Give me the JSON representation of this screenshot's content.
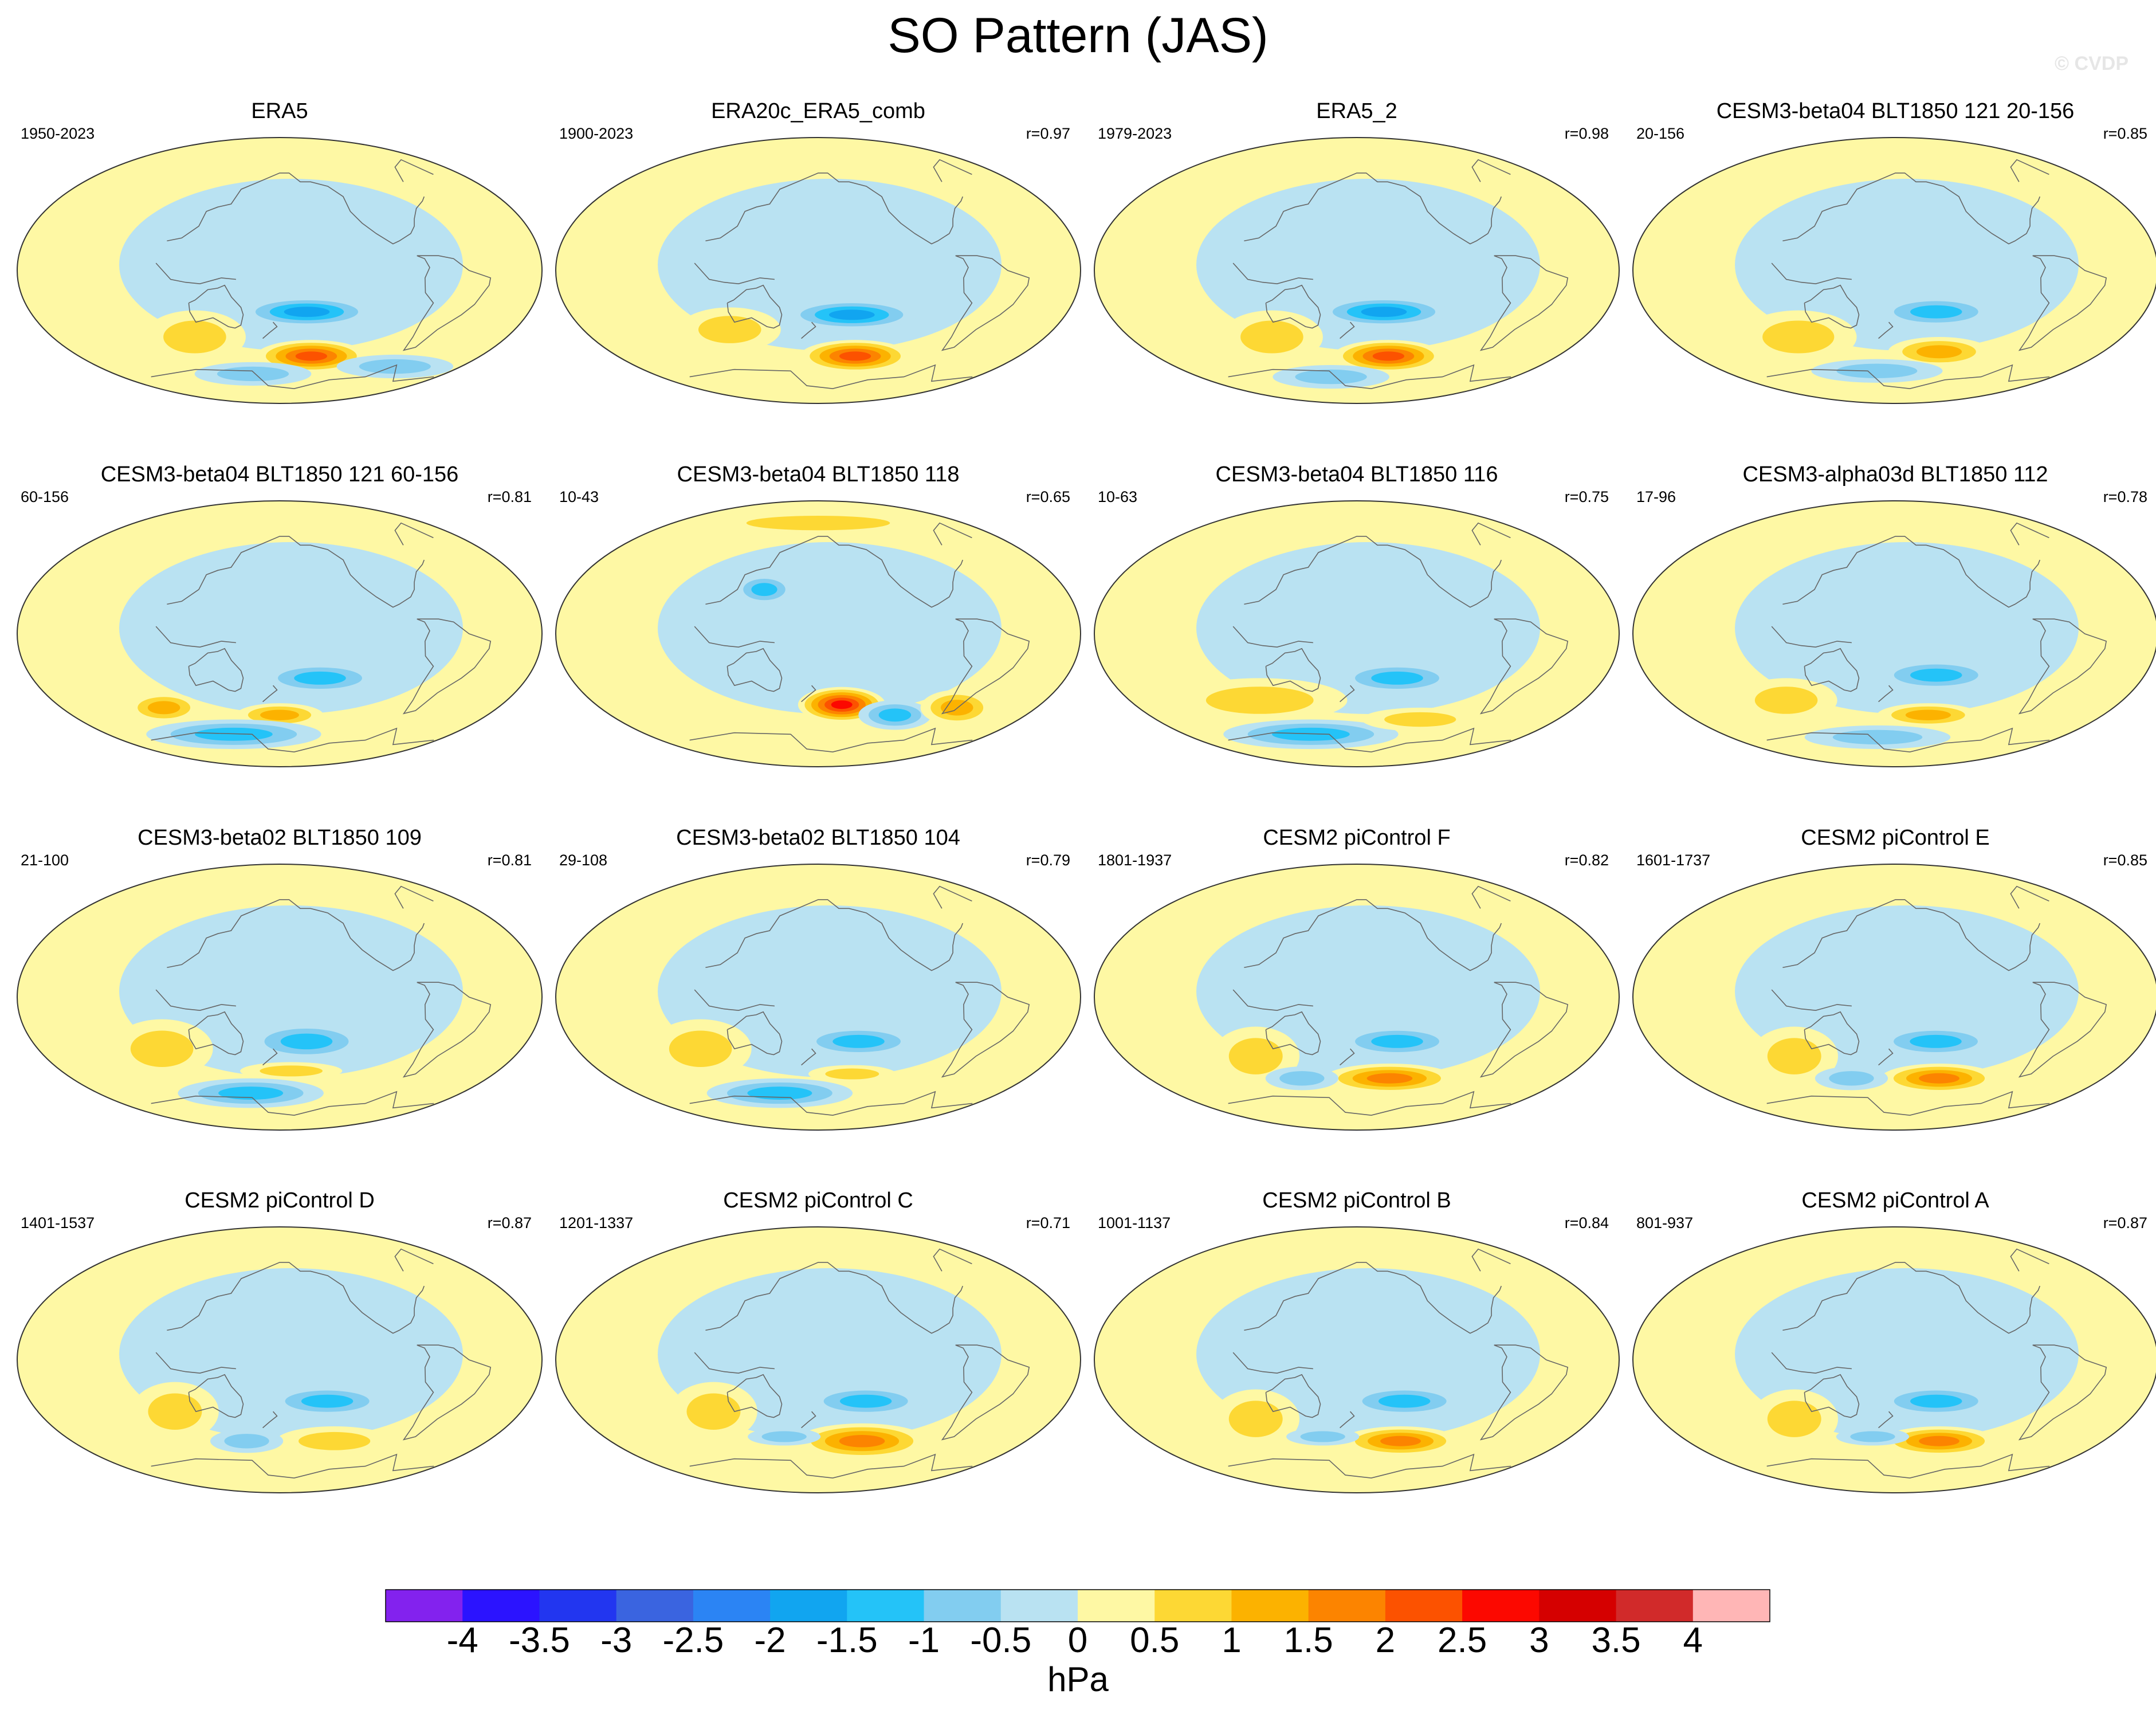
{
  "title": "SO Pattern (JAS)",
  "watermark": "© CVDP",
  "chart_data": {
    "type": "map-grid",
    "variable": "SO Pattern (JAS)",
    "units": "hPa",
    "panels": [
      {
        "title": "ERA5",
        "period": "1950-2023",
        "r": "",
        "features": [
          {
            "lon": 200,
            "lat": -28,
            "val": -2.0,
            "rx": 45,
            "ry": 10
          },
          {
            "lon": 210,
            "lat": -58,
            "val": 2.5,
            "rx": 38,
            "ry": 11
          },
          {
            "lon": 110,
            "lat": -45,
            "val": 1.0,
            "rx": 35,
            "ry": 18
          },
          {
            "lon": 300,
            "lat": -65,
            "val": -1.0,
            "rx": 40,
            "ry": 8
          },
          {
            "lon": 150,
            "lat": -70,
            "val": -1.0,
            "rx": 40,
            "ry": 8
          }
        ]
      },
      {
        "title": "ERA20c_ERA5_comb",
        "period": "1900-2023",
        "r": "r=0.97",
        "features": [
          {
            "lon": 205,
            "lat": -30,
            "val": -2.0,
            "rx": 45,
            "ry": 10
          },
          {
            "lon": 215,
            "lat": -58,
            "val": 2.5,
            "rx": 38,
            "ry": 11
          },
          {
            "lon": 110,
            "lat": -40,
            "val": 1.0,
            "rx": 35,
            "ry": 15
          }
        ]
      },
      {
        "title": "ERA5_2",
        "period": "1979-2023",
        "r": "r=0.98",
        "features": [
          {
            "lon": 200,
            "lat": -28,
            "val": -2.0,
            "rx": 45,
            "ry": 10
          },
          {
            "lon": 210,
            "lat": -58,
            "val": 2.5,
            "rx": 38,
            "ry": 11
          },
          {
            "lon": 110,
            "lat": -45,
            "val": 1.0,
            "rx": 35,
            "ry": 18
          },
          {
            "lon": 150,
            "lat": -72,
            "val": -1.0,
            "rx": 40,
            "ry": 8
          }
        ]
      },
      {
        "title": "CESM3-beta04 BLT1850 121 20-156",
        "period": "20-156",
        "r": "r=0.85",
        "features": [
          {
            "lon": 210,
            "lat": -28,
            "val": -1.5,
            "rx": 40,
            "ry": 10
          },
          {
            "lon": 220,
            "lat": -55,
            "val": 1.5,
            "rx": 35,
            "ry": 10
          },
          {
            "lon": 100,
            "lat": -45,
            "val": 1.0,
            "rx": 40,
            "ry": 18
          },
          {
            "lon": 160,
            "lat": -68,
            "val": -1.0,
            "rx": 45,
            "ry": 8
          }
        ]
      },
      {
        "title": "CESM3-beta04 BLT1850 121 60-156",
        "period": "60-156",
        "r": "r=0.81",
        "features": [
          {
            "lon": 210,
            "lat": -30,
            "val": -1.5,
            "rx": 40,
            "ry": 10
          },
          {
            "lon": 180,
            "lat": -55,
            "val": 1.5,
            "rx": 30,
            "ry": 8
          },
          {
            "lon": 80,
            "lat": -50,
            "val": 1.5,
            "rx": 25,
            "ry": 10
          },
          {
            "lon": 130,
            "lat": -68,
            "val": -1.5,
            "rx": 60,
            "ry": 10
          }
        ]
      },
      {
        "title": "CESM3-beta04 BLT1850 118",
        "period": "10-43",
        "r": "r=0.65",
        "features": [
          {
            "lon": 200,
            "lat": -48,
            "val": 3.0,
            "rx": 30,
            "ry": 12
          },
          {
            "lon": 250,
            "lat": -55,
            "val": -1.5,
            "rx": 25,
            "ry": 10
          },
          {
            "lon": 140,
            "lat": 30,
            "val": -1.5,
            "rx": 20,
            "ry": 10
          },
          {
            "lon": 300,
            "lat": -50,
            "val": 1.5,
            "rx": 25,
            "ry": 12
          },
          {
            "lon": 180,
            "lat": 75,
            "val": 1.0,
            "rx": 80,
            "ry": 8
          }
        ]
      },
      {
        "title": "CESM3-beta04 BLT1850 116",
        "period": "10-63",
        "r": "r=0.75",
        "features": [
          {
            "lon": 210,
            "lat": -30,
            "val": -1.5,
            "rx": 40,
            "ry": 10
          },
          {
            "lon": 100,
            "lat": -45,
            "val": 1.0,
            "rx": 60,
            "ry": 15
          },
          {
            "lon": 130,
            "lat": -68,
            "val": -1.5,
            "rx": 60,
            "ry": 10
          },
          {
            "lon": 240,
            "lat": -58,
            "val": 1.0,
            "rx": 40,
            "ry": 8
          }
        ]
      },
      {
        "title": "CESM3-alpha03d BLT1850 112",
        "period": "17-96",
        "r": "r=0.78",
        "features": [
          {
            "lon": 210,
            "lat": -28,
            "val": -1.5,
            "rx": 40,
            "ry": 10
          },
          {
            "lon": 210,
            "lat": -55,
            "val": 1.5,
            "rx": 35,
            "ry": 8
          },
          {
            "lon": 90,
            "lat": -45,
            "val": 1.0,
            "rx": 35,
            "ry": 15
          },
          {
            "lon": 160,
            "lat": -70,
            "val": -1.0,
            "rx": 50,
            "ry": 8
          }
        ]
      },
      {
        "title": "CESM3-beta02 BLT1850 109",
        "period": "21-100",
        "r": "r=0.81",
        "features": [
          {
            "lon": 200,
            "lat": -30,
            "val": -1.5,
            "rx": 40,
            "ry": 12
          },
          {
            "lon": 190,
            "lat": -50,
            "val": 1.0,
            "rx": 35,
            "ry": 6
          },
          {
            "lon": 90,
            "lat": -35,
            "val": 1.0,
            "rx": 35,
            "ry": 20
          },
          {
            "lon": 150,
            "lat": -65,
            "val": -1.5,
            "rx": 50,
            "ry": 10
          }
        ]
      },
      {
        "title": "CESM3-beta02 BLT1850 104",
        "period": "29-108",
        "r": "r=0.79",
        "features": [
          {
            "lon": 210,
            "lat": -30,
            "val": -1.5,
            "rx": 40,
            "ry": 10
          },
          {
            "lon": 210,
            "lat": -52,
            "val": 1.0,
            "rx": 30,
            "ry": 6
          },
          {
            "lon": 90,
            "lat": -35,
            "val": 1.0,
            "rx": 35,
            "ry": 20
          },
          {
            "lon": 140,
            "lat": -65,
            "val": -1.5,
            "rx": 50,
            "ry": 10
          }
        ]
      },
      {
        "title": "CESM2 piControl F",
        "period": "1801-1937",
        "r": "r=0.82",
        "features": [
          {
            "lon": 210,
            "lat": -30,
            "val": -1.5,
            "rx": 40,
            "ry": 10
          },
          {
            "lon": 210,
            "lat": -55,
            "val": 2.0,
            "rx": 45,
            "ry": 10
          },
          {
            "lon": 100,
            "lat": -40,
            "val": 1.0,
            "rx": 30,
            "ry": 20
          },
          {
            "lon": 130,
            "lat": -55,
            "val": -1.0,
            "rx": 25,
            "ry": 8
          }
        ]
      },
      {
        "title": "CESM2 piControl E",
        "period": "1601-1737",
        "r": "r=0.85",
        "features": [
          {
            "lon": 210,
            "lat": -30,
            "val": -1.5,
            "rx": 40,
            "ry": 10
          },
          {
            "lon": 220,
            "lat": -55,
            "val": 2.0,
            "rx": 40,
            "ry": 10
          },
          {
            "lon": 100,
            "lat": -40,
            "val": 1.0,
            "rx": 30,
            "ry": 20
          },
          {
            "lon": 140,
            "lat": -55,
            "val": -1.0,
            "rx": 25,
            "ry": 8
          }
        ]
      },
      {
        "title": "CESM2 piControl D",
        "period": "1401-1537",
        "r": "r=0.87",
        "features": [
          {
            "lon": 215,
            "lat": -28,
            "val": -1.5,
            "rx": 40,
            "ry": 10
          },
          {
            "lon": 230,
            "lat": -55,
            "val": 1.0,
            "rx": 40,
            "ry": 10
          },
          {
            "lon": 100,
            "lat": -35,
            "val": 1.0,
            "rx": 30,
            "ry": 20
          },
          {
            "lon": 150,
            "lat": -55,
            "val": -1.0,
            "rx": 25,
            "ry": 8
          }
        ]
      },
      {
        "title": "CESM2 piControl C",
        "period": "1201-1337",
        "r": "r=0.71",
        "features": [
          {
            "lon": 215,
            "lat": -28,
            "val": -1.5,
            "rx": 40,
            "ry": 10
          },
          {
            "lon": 220,
            "lat": -55,
            "val": 2.0,
            "rx": 45,
            "ry": 12
          },
          {
            "lon": 100,
            "lat": -35,
            "val": 1.0,
            "rx": 30,
            "ry": 20
          },
          {
            "lon": 150,
            "lat": -52,
            "val": -1.0,
            "rx": 25,
            "ry": 6
          }
        ]
      },
      {
        "title": "CESM2 piControl B",
        "period": "1001-1137",
        "r": "r=0.84",
        "features": [
          {
            "lon": 215,
            "lat": -28,
            "val": -1.5,
            "rx": 40,
            "ry": 10
          },
          {
            "lon": 220,
            "lat": -55,
            "val": 2.0,
            "rx": 40,
            "ry": 10
          },
          {
            "lon": 100,
            "lat": -40,
            "val": 1.0,
            "rx": 30,
            "ry": 20
          },
          {
            "lon": 150,
            "lat": -52,
            "val": -1.0,
            "rx": 25,
            "ry": 6
          }
        ]
      },
      {
        "title": "CESM2 piControl A",
        "period": "801-937",
        "r": "r=0.87",
        "features": [
          {
            "lon": 210,
            "lat": -28,
            "val": -1.5,
            "rx": 40,
            "ry": 10
          },
          {
            "lon": 220,
            "lat": -55,
            "val": 2.0,
            "rx": 40,
            "ry": 10
          },
          {
            "lon": 100,
            "lat": -40,
            "val": 1.0,
            "rx": 30,
            "ry": 20
          },
          {
            "lon": 160,
            "lat": -52,
            "val": -1.0,
            "rx": 25,
            "ry": 6
          }
        ]
      }
    ],
    "colorbar": {
      "ticks": [
        "-4",
        "-3.5",
        "-3",
        "-2.5",
        "-2",
        "-1.5",
        "-1",
        "-0.5",
        "0",
        "0.5",
        "1",
        "1.5",
        "2",
        "2.5",
        "3",
        "3.5",
        "4"
      ],
      "colors": [
        "#8322ee",
        "#2b13ff",
        "#2236f0",
        "#3a64e0",
        "#2b84f4",
        "#11a5f0",
        "#24c3f8",
        "#82cdf0",
        "#b9e2f2",
        "#fef8a4",
        "#fdd834",
        "#fcb200",
        "#fc8400",
        "#fc5200",
        "#fc0800",
        "#d50000",
        "#d12a2a",
        "#ffb6b6"
      ],
      "unit": "hPa"
    }
  }
}
